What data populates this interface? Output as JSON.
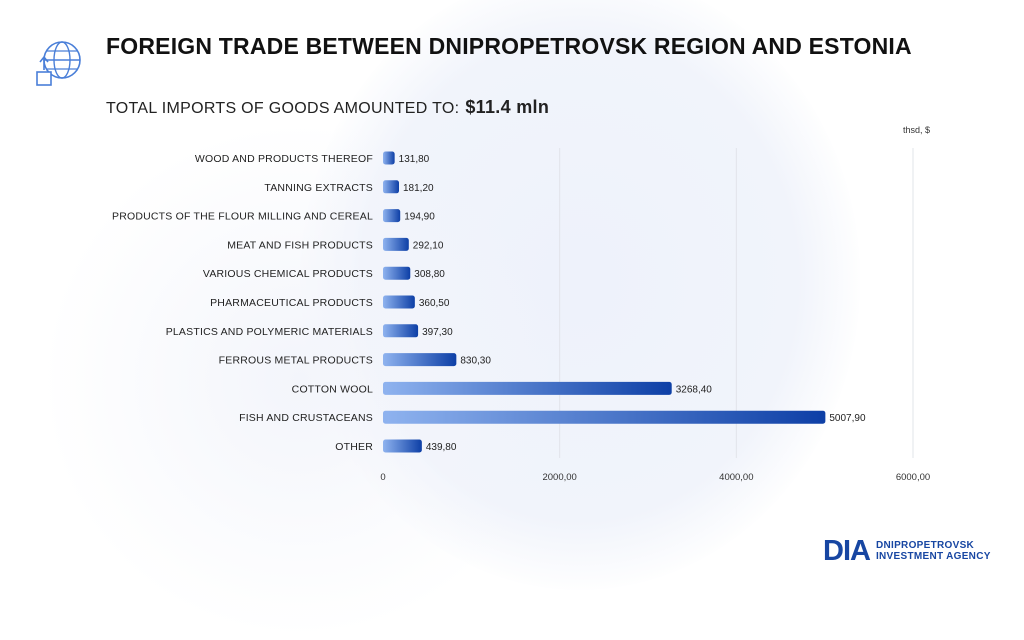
{
  "header": {
    "title": "FOREIGN TRADE BETWEEN DNIPROPETROVSK REGION AND ESTONIA",
    "subtitle_prefix": "TOTAL IMPORTS OF GOODS AMOUNTED TO:",
    "subtitle_amount": "$11.4 mln",
    "units": "thsd, $"
  },
  "logo": {
    "mark": "DIA",
    "line1": "DNIPROPETROVSK",
    "line2": "INVESTMENT AGENCY"
  },
  "colors": {
    "bar_light": "#8fb3ef",
    "bar_dark": "#0d3fa6",
    "icon": "#4a7fd8",
    "grid": "#e2e4ea"
  },
  "chart_data": {
    "type": "bar",
    "orientation": "horizontal",
    "categories": [
      "WOOD AND PRODUCTS THEREOF",
      "TANNING EXTRACTS",
      "PRODUCTS OF THE FLOUR MILLING AND CEREAL",
      "MEAT AND FISH PRODUCTS",
      "VARIOUS CHEMICAL PRODUCTS",
      "PHARMACEUTICAL PRODUCTS",
      "PLASTICS AND POLYMERIC MATERIALS",
      "FERROUS METAL PRODUCTS",
      "COTTON WOOL",
      "FISH AND CRUSTACEANS",
      "OTHER"
    ],
    "values": [
      131.8,
      181.2,
      194.9,
      292.1,
      308.8,
      360.5,
      397.3,
      830.3,
      3268.4,
      5007.9,
      439.8
    ],
    "value_labels": [
      "131,80",
      "181,20",
      "194,90",
      "292,10",
      "308,80",
      "360,50",
      "397,30",
      "830,30",
      "3268,40",
      "5007,90",
      "439,80"
    ],
    "xlim": [
      0,
      6000
    ],
    "x_ticks": [
      0,
      2000,
      4000,
      6000
    ],
    "x_tick_labels": [
      "0",
      "2000,00",
      "4000,00",
      "6000,00"
    ],
    "grid": true
  }
}
